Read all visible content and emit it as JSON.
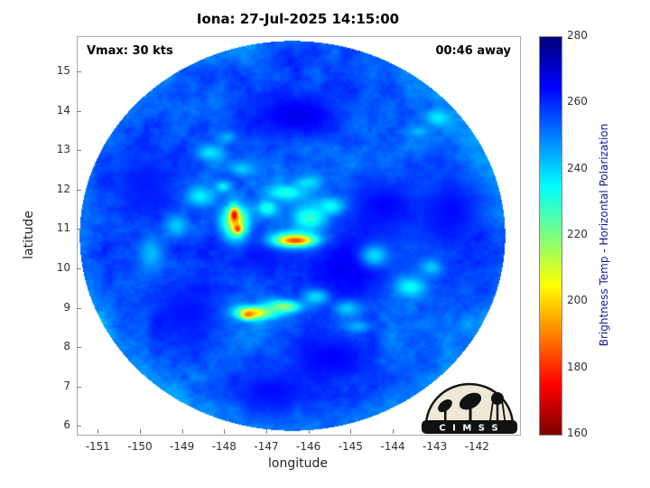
{
  "logo": {
    "text": "C I M S S"
  },
  "chart_data": {
    "type": "heatmap",
    "title": "Iona: 27-Jul-2025 14:15:00",
    "xlabel": "longitude",
    "ylabel": "latitude",
    "xlim": [
      -151.5,
      -141.0
    ],
    "ylim": [
      5.8,
      15.9
    ],
    "xticks": [
      -151,
      -150,
      -149,
      -148,
      -147,
      -146,
      -145,
      -144,
      -143,
      -142
    ],
    "yticks": [
      6,
      7,
      8,
      9,
      10,
      11,
      12,
      13,
      14,
      15
    ],
    "grid": false,
    "annotations": [
      {
        "text": "Vmax: 30 kts",
        "position": "top-left"
      },
      {
        "text": "00:46 away",
        "position": "top-right"
      }
    ],
    "colorbar": {
      "label": "Brightness Temp - Horizontal Polarization",
      "min": 160,
      "max": 280,
      "ticks": [
        160,
        180,
        200,
        220,
        240,
        260,
        280
      ],
      "colormap": "jet_reversed",
      "position": "right"
    },
    "swath": {
      "shape": "ellipse",
      "center_lon": -146.4,
      "center_lat": 10.85,
      "radius_lon": 5.05,
      "radius_lat": 4.95,
      "background_temp": 255.5
    },
    "features": [
      [
        -144.85,
        10.15,
        267,
        1.0,
        0.9
      ],
      [
        -144.2,
        11.6,
        265,
        0.9,
        0.7
      ],
      [
        -146.3,
        13.9,
        267,
        1.1,
        0.6
      ],
      [
        -145.5,
        7.75,
        265,
        1.0,
        0.55
      ],
      [
        -148.9,
        8.9,
        263,
        0.8,
        0.6
      ],
      [
        -147.15,
        10.35,
        263,
        0.55,
        0.45
      ],
      [
        -142.65,
        11.5,
        264,
        0.7,
        0.9
      ],
      [
        -146.9,
        6.9,
        264,
        0.9,
        0.5
      ],
      [
        -149.9,
        12.2,
        262,
        0.6,
        0.7
      ],
      [
        -146.0,
        11.3,
        229,
        0.42,
        0.33
      ],
      [
        -145.5,
        11.6,
        234,
        0.33,
        0.22
      ],
      [
        -146.55,
        11.95,
        231,
        0.45,
        0.2
      ],
      [
        -146.05,
        12.2,
        238,
        0.3,
        0.16
      ],
      [
        -148.6,
        11.85,
        236,
        0.33,
        0.26
      ],
      [
        -149.15,
        11.1,
        241,
        0.3,
        0.3
      ],
      [
        -148.35,
        12.95,
        238,
        0.32,
        0.2
      ],
      [
        -147.95,
        13.35,
        244,
        0.22,
        0.15
      ],
      [
        -144.45,
        10.35,
        239,
        0.35,
        0.3
      ],
      [
        -143.6,
        9.55,
        234,
        0.36,
        0.25
      ],
      [
        -143.1,
        10.05,
        241,
        0.25,
        0.2
      ],
      [
        -142.95,
        13.85,
        237,
        0.3,
        0.2
      ],
      [
        -143.4,
        13.5,
        243,
        0.25,
        0.15
      ],
      [
        -145.1,
        9.0,
        241,
        0.3,
        0.2
      ],
      [
        -145.85,
        9.3,
        239,
        0.32,
        0.2
      ],
      [
        -144.85,
        8.55,
        244,
        0.3,
        0.15
      ],
      [
        -149.75,
        10.4,
        243,
        0.3,
        0.45
      ],
      [
        -147.6,
        12.55,
        241,
        0.3,
        0.18
      ],
      [
        -147.0,
        11.55,
        231,
        0.25,
        0.2
      ],
      [
        -148.05,
        12.1,
        236,
        0.18,
        0.13
      ],
      [
        -147.75,
        11.2,
        206,
        0.3,
        0.42
      ],
      [
        -147.78,
        11.38,
        172,
        0.1,
        0.17
      ],
      [
        -147.7,
        11.03,
        179,
        0.09,
        0.11
      ],
      [
        -146.35,
        10.75,
        207,
        0.55,
        0.2
      ],
      [
        -146.33,
        10.73,
        183,
        0.3,
        0.09
      ],
      [
        -147.3,
        8.9,
        202,
        0.45,
        0.17
      ],
      [
        -147.45,
        8.85,
        187,
        0.15,
        0.1
      ],
      [
        -146.6,
        9.05,
        217,
        0.4,
        0.16
      ]
    ]
  }
}
